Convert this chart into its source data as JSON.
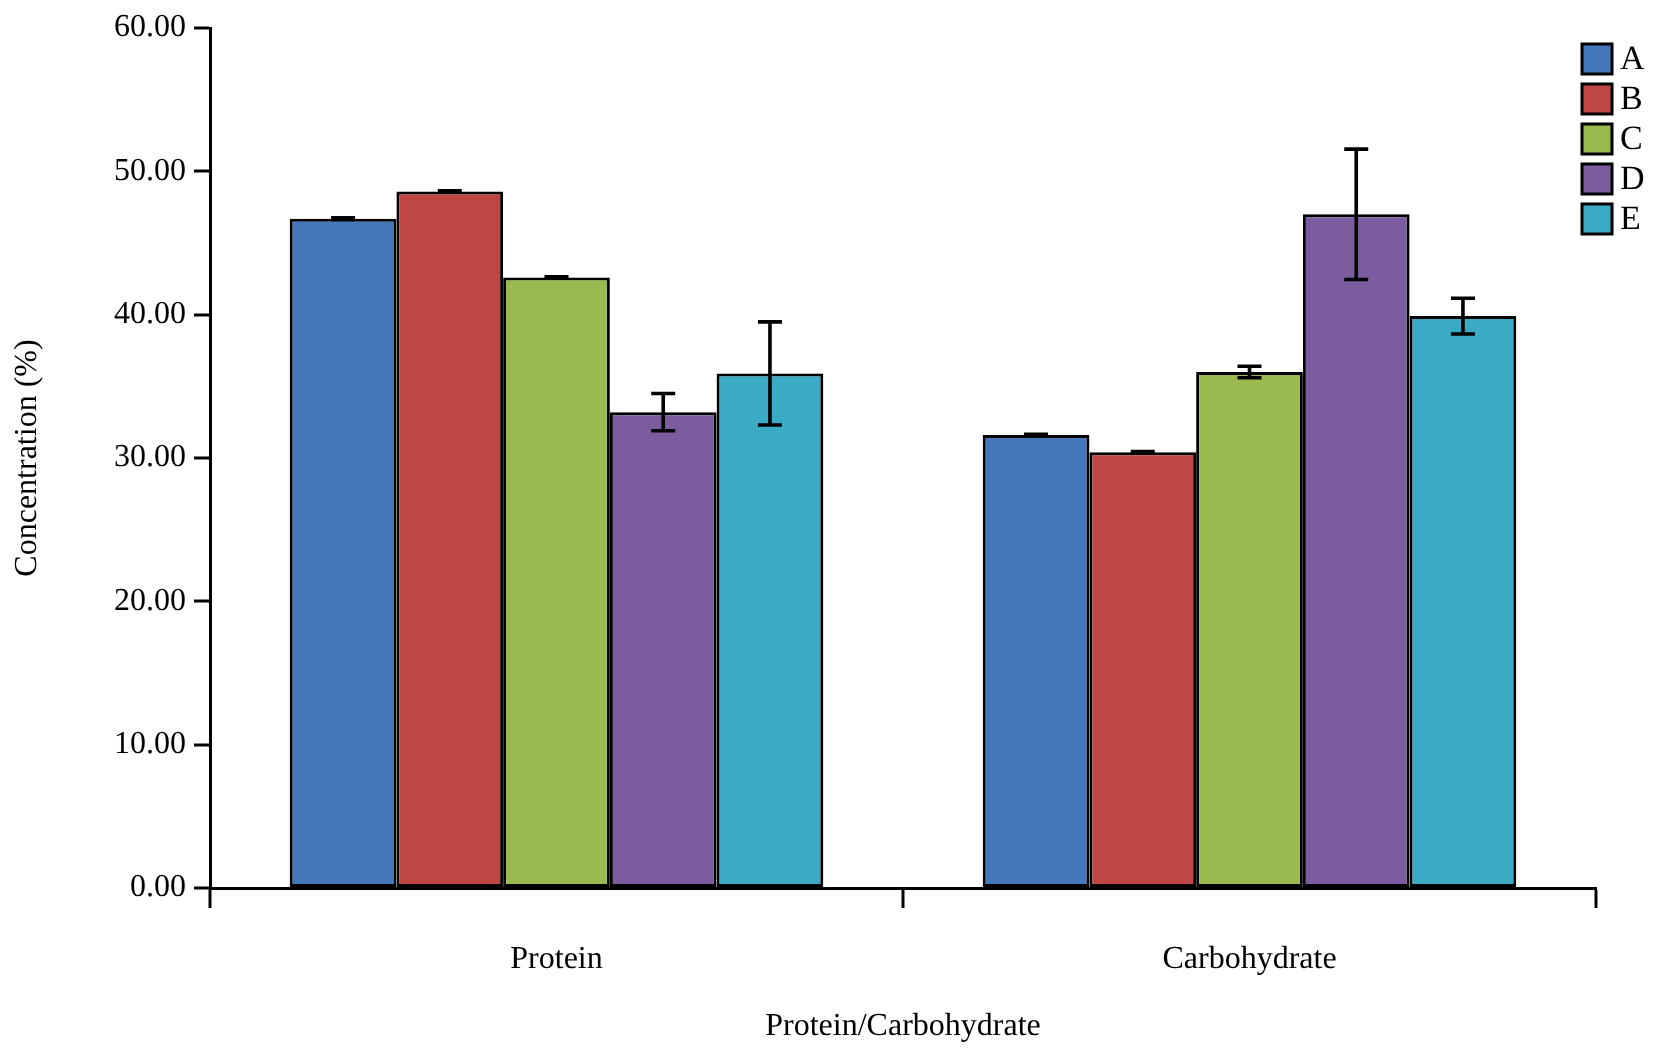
{
  "chart_data": {
    "type": "bar",
    "xlabel": "Protein/Carbohydrate",
    "ylabel": "Concentration (%)",
    "categories": [
      "Protein",
      "Carbohydrate"
    ],
    "series": [
      {
        "name": "A",
        "color": "#4379bb",
        "values": [
          46.7,
          31.6
        ],
        "errors": [
          0.05,
          0.05
        ]
      },
      {
        "name": "B",
        "color": "#c04644",
        "values": [
          48.6,
          30.4
        ],
        "errors": [
          0.05,
          0.05
        ]
      },
      {
        "name": "C",
        "color": "#9aba4f",
        "values": [
          42.6,
          36.0
        ],
        "errors": [
          0.05,
          0.4
        ]
      },
      {
        "name": "D",
        "color": "#7c5c9e",
        "values": [
          33.2,
          47.0
        ],
        "errors": [
          1.3,
          4.55
        ]
      },
      {
        "name": "E",
        "color": "#3baac5",
        "values": [
          35.9,
          39.9
        ],
        "errors": [
          3.6,
          1.25
        ]
      }
    ],
    "ylim": [
      0,
      60
    ],
    "yticks": [
      {
        "value": 0,
        "label": "0.00"
      },
      {
        "value": 10,
        "label": "10.00"
      },
      {
        "value": 20,
        "label": "20.00"
      },
      {
        "value": 30,
        "label": "30.00"
      },
      {
        "value": 40,
        "label": "40.00"
      },
      {
        "value": 50,
        "label": "50.00"
      },
      {
        "value": 60,
        "label": "60.00"
      }
    ],
    "grid": false,
    "legend": "top right"
  }
}
